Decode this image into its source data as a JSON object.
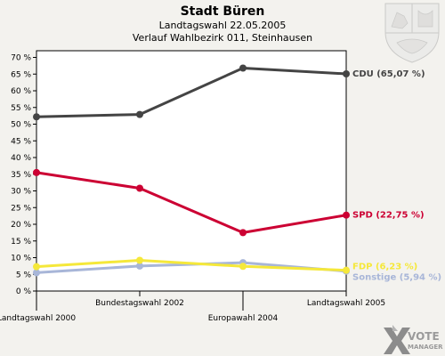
{
  "chart_data": {
    "type": "line",
    "title": "Stadt Büren",
    "subtitle_1": "Landtagswahl 22.05.2005",
    "subtitle_2": "Verlauf Wahlbezirk 011, Steinhausen",
    "categories": [
      "Landtagswahl 2000",
      "Bundestagswahl 2002",
      "Europawahl 2004",
      "Landtagswahl 2005"
    ],
    "ylim": [
      0,
      72
    ],
    "yticks": [
      0,
      5,
      10,
      15,
      20,
      25,
      30,
      35,
      40,
      45,
      50,
      55,
      60,
      65,
      70
    ],
    "ytick_suffix": " %",
    "grid": false,
    "series": [
      {
        "name": "CDU",
        "label": "CDU (65,07 %)",
        "color": "#444444",
        "values": [
          52.2,
          52.9,
          66.8,
          65.07
        ]
      },
      {
        "name": "SPD",
        "label": "SPD (22,75 %)",
        "color": "#cc0033",
        "values": [
          35.5,
          30.8,
          17.5,
          22.75
        ]
      },
      {
        "name": "FDP",
        "label": "FDP (6,23 %)",
        "color": "#f5e83a",
        "values": [
          7.3,
          9.2,
          7.4,
          6.23
        ]
      },
      {
        "name": "Sonstige",
        "label": "Sonstige (5,94 %)",
        "color": "#a8b6d8",
        "values": [
          5.5,
          7.5,
          8.5,
          5.94
        ]
      }
    ]
  },
  "logo": {
    "line1": "VOTE",
    "line2": "MANAGER"
  }
}
